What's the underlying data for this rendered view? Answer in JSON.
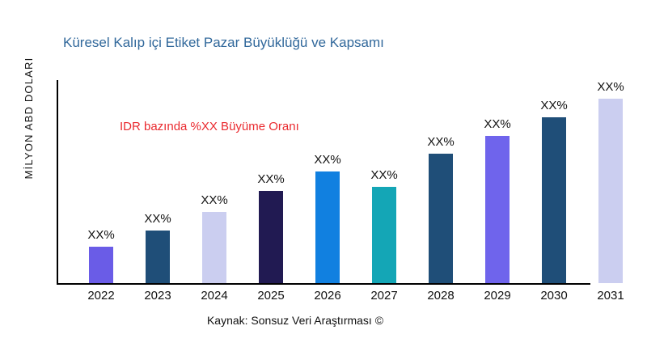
{
  "header": {
    "title": "Küresel Kalıp içi Etiket Pazar Büyüklüğü ve Kapsamı",
    "title_color": "#31689B"
  },
  "annotation": {
    "text": "IDR bazında %XX Büyüme Oranı",
    "color": "#EA2A2F"
  },
  "source": {
    "text": "Kaynak: Sonsuz Veri Araştırması ©"
  },
  "chart_data": {
    "type": "bar",
    "title": "Küresel Kalıp içi Etiket Pazar Büyüklüğü ve Kapsamı",
    "xlabel": "",
    "ylabel": "MİLYON ABD DOLARI",
    "categories": [
      "2022",
      "2023",
      "2024",
      "2025",
      "2026",
      "2027",
      "2028",
      "2029",
      "2030",
      "2031"
    ],
    "values": [
      45,
      65,
      88,
      114,
      138,
      119,
      160,
      182,
      205,
      228
    ],
    "values_unit": "relative-height-px (numeric axis values not shown in chart)",
    "value_labels": [
      "XX%",
      "XX%",
      "XX%",
      "XX%",
      "XX%",
      "XX%",
      "XX%",
      "XX%",
      "XX%",
      "XX%"
    ],
    "bar_colors": [
      "#6A5CE7",
      "#1F4E78",
      "#CBCEF0",
      "#211A52",
      "#1180E0",
      "#14A6B6",
      "#1F4E78",
      "#6F64EC",
      "#1F4E78",
      "#CBCEF0"
    ],
    "annotation": "IDR bazında %XX Büyüme Oranı",
    "legend": "none",
    "grid": "off",
    "axis_color": "#000000"
  }
}
